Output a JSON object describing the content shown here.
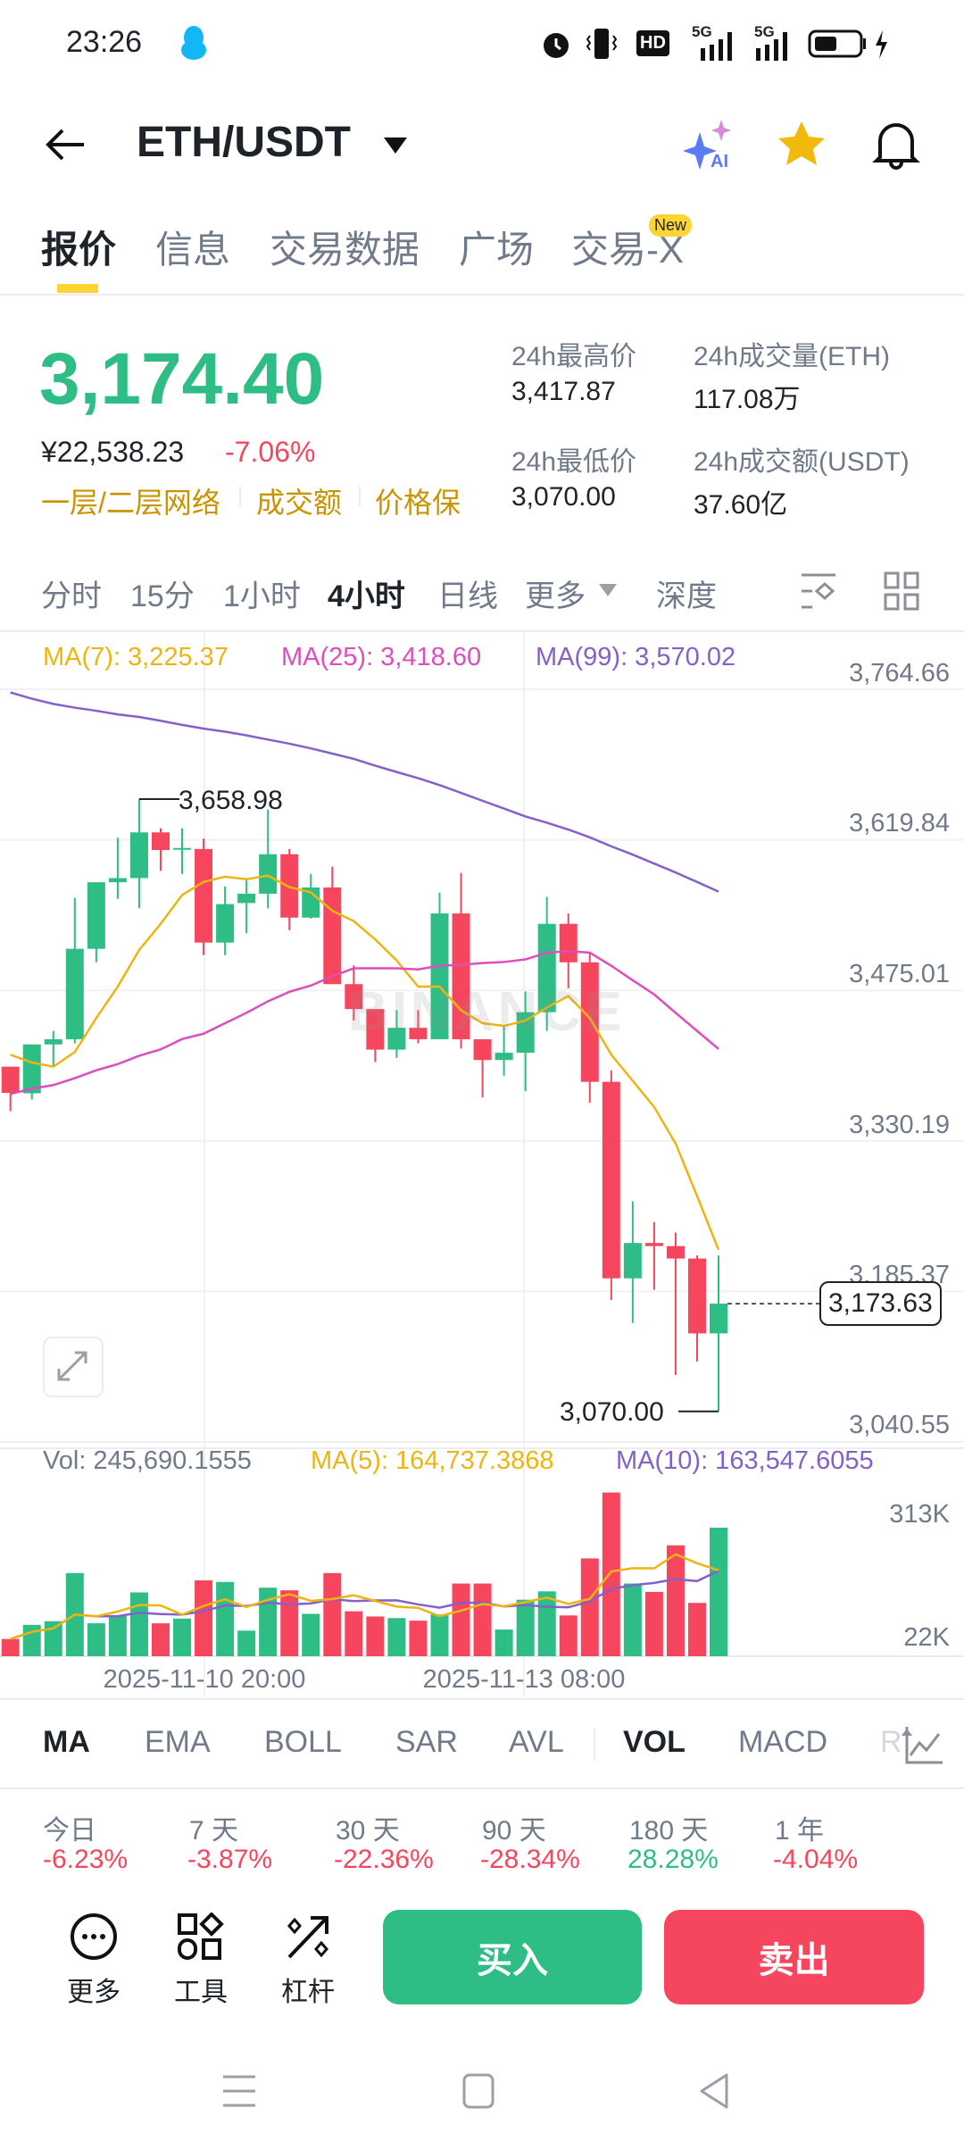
{
  "status_bar": {
    "time": "23:26",
    "network_1": "5G",
    "network_2": "5G",
    "hd_label": "HD"
  },
  "header": {
    "pair": "ETH/USDT",
    "ai_label": "AI"
  },
  "tabs": [
    {
      "label": "报价",
      "active": true
    },
    {
      "label": "信息"
    },
    {
      "label": "交易数据"
    },
    {
      "label": "广场"
    },
    {
      "label": "交易-X",
      "badge": "New"
    }
  ],
  "ticker": {
    "price": "3,174.40",
    "cny_price": "¥22,538.23",
    "change": "-7.06%",
    "tags": [
      "一层/二层网络",
      "成交额",
      "价格保"
    ],
    "high_label": "24h最高价",
    "high": "3,417.87",
    "low_label": "24h最低价",
    "low": "3,070.00",
    "vol_label": "24h成交量(ETH)",
    "vol": "117.08万",
    "turnover_label": "24h成交额(USDT)",
    "turnover": "37.60亿"
  },
  "timeframes": [
    {
      "label": "分时"
    },
    {
      "label": "15分"
    },
    {
      "label": "1小时"
    },
    {
      "label": "4小时",
      "active": true
    },
    {
      "label": "日线"
    },
    {
      "label": "更多"
    },
    {
      "label": "深度"
    }
  ],
  "colors": {
    "up": "#2EBD85",
    "down": "#F6465D",
    "ma7": "#EDB512",
    "ma25": "#DE4DBD",
    "ma99": "#8461C9",
    "accent": "#F0B90B"
  },
  "chart_data": {
    "type": "candlestick",
    "legend": {
      "ma7": "MA(7): 3,225.37",
      "ma25": "MA(25): 3,418.60",
      "ma99": "MA(99): 3,570.02"
    },
    "y_ticks": [
      "3,764.66",
      "3,619.84",
      "3,475.01",
      "3,330.19",
      "3,185.37",
      "3,040.55"
    ],
    "ylim": [
      3040.55,
      3764.66
    ],
    "x_ticks": [
      "2025-11-10 20:00",
      "2025-11-13 08:00"
    ],
    "high_marker": "3,658.98",
    "low_marker": "3,070.00",
    "last_price": "3,173.63",
    "watermark": "BINANCE",
    "candles": [
      [
        3401.6,
        3401.6,
        3358.7,
        3376.4
      ],
      [
        3376,
        3423,
        3370,
        3423
      ],
      [
        3423,
        3436,
        3401,
        3428
      ],
      [
        3428,
        3564,
        3424,
        3515
      ],
      [
        3515,
        3579,
        3502,
        3579
      ],
      [
        3579,
        3622,
        3563,
        3583
      ],
      [
        3583,
        3658.98,
        3554,
        3627
      ],
      [
        3627,
        3631,
        3590,
        3610
      ],
      [
        3611,
        3631,
        3587,
        3612
      ],
      [
        3611,
        3621,
        3509,
        3521
      ],
      [
        3521,
        3575,
        3509,
        3558
      ],
      [
        3559,
        3582,
        3530,
        3568
      ],
      [
        3568,
        3649,
        3554,
        3606
      ],
      [
        3606,
        3611,
        3533,
        3545
      ],
      [
        3545,
        3587,
        3544,
        3574
      ],
      [
        3574,
        3594,
        3481,
        3481
      ],
      [
        3481,
        3499,
        3446,
        3457
      ],
      [
        3457,
        3457,
        3406,
        3418
      ],
      [
        3418,
        3456,
        3410,
        3439
      ],
      [
        3439,
        3456,
        3424,
        3428
      ],
      [
        3428,
        3569,
        3428,
        3549
      ],
      [
        3549,
        3588,
        3419,
        3428
      ],
      [
        3428,
        3428,
        3372,
        3408
      ],
      [
        3408,
        3441,
        3393,
        3415
      ],
      [
        3415,
        3474,
        3378,
        3454
      ],
      [
        3454,
        3565,
        3436,
        3539
      ],
      [
        3539,
        3549,
        3477,
        3502
      ],
      [
        3502,
        3511,
        3367,
        3387
      ],
      [
        3387,
        3398,
        3177,
        3198
      ],
      [
        3198,
        3272,
        3155,
        3232
      ],
      [
        3232,
        3252,
        3187,
        3229
      ],
      [
        3229,
        3242,
        3105,
        3217
      ],
      [
        3217,
        3220,
        3118,
        3145
      ],
      [
        3145,
        3220,
        3070,
        3173.63
      ]
    ],
    "ma7": [
      3413.1,
      3405.6,
      3401.6,
      3415.7,
      3448.4,
      3478.6,
      3513.9,
      3539.0,
      3566.7,
      3579.3,
      3584.4,
      3581.9,
      3585.4,
      3574.3,
      3569.3,
      3551.6,
      3541.6,
      3524.0,
      3503.8,
      3478.6,
      3478.6,
      3456.0,
      3443.4,
      3440.8,
      3445.9,
      3458.5,
      3469.6,
      3448.4,
      3413.1,
      3388.0,
      3362.8,
      3327.6,
      3277.2,
      3225.37
    ],
    "ma25": [
      3375.4,
      3380.4,
      3383.9,
      3390.5,
      3398.1,
      3404.1,
      3412.1,
      3418.2,
      3428.2,
      3433.3,
      3443.4,
      3453.4,
      3464.5,
      3473.6,
      3479.6,
      3488.6,
      3496.2,
      3496.2,
      3496.2,
      3495.2,
      3498.7,
      3499.7,
      3501.3,
      3502.3,
      3504.8,
      3511.3,
      3512.8,
      3511.3,
      3498.7,
      3484.7,
      3471.1,
      3453.4,
      3436.0,
      3418.6
    ],
    "ma99": [
      3761.6,
      3755.6,
      3750.6,
      3747.0,
      3744.0,
      3740.5,
      3738.0,
      3734.4,
      3730.4,
      3726.9,
      3723.9,
      3720.3,
      3716.3,
      3712.3,
      3707.8,
      3702.8,
      3697.7,
      3691.2,
      3685.1,
      3679.1,
      3672.5,
      3665.0,
      3657.4,
      3649.9,
      3642.3,
      3636.3,
      3629.7,
      3622.2,
      3613.6,
      3605.6,
      3597.0,
      3588.4,
      3579.3,
      3570.02
    ]
  },
  "volume_data": {
    "type": "bar",
    "legend": {
      "vol": "Vol: 245,690.1555",
      "ma5": "MA(5): 164,737.3868",
      "ma10": "MA(10): 163,547.6055"
    },
    "y_ticks": [
      "313K",
      "22K"
    ],
    "unit": "K",
    "values": [
      33,
      60,
      67,
      159,
      63,
      78,
      122,
      63,
      72,
      145,
      142,
      49,
      131,
      126,
      81,
      159,
      86,
      76,
      73,
      68,
      80,
      139,
      139,
      51,
      108,
      124,
      78,
      187,
      313,
      139,
      123,
      212,
      102,
      245.69
    ]
  },
  "indicators": [
    {
      "label": "MA",
      "active": true
    },
    {
      "label": "EMA"
    },
    {
      "label": "BOLL"
    },
    {
      "label": "SAR"
    },
    {
      "label": "AVL"
    },
    {
      "label": "VOL",
      "active": true
    },
    {
      "label": "MACD"
    },
    {
      "label": "R"
    }
  ],
  "performance": [
    {
      "label": "今日",
      "value": "-6.23%"
    },
    {
      "label": "7 天",
      "value": "-3.87%"
    },
    {
      "label": "30 天",
      "value": "-22.36%"
    },
    {
      "label": "90 天",
      "value": "-28.34%"
    },
    {
      "label": "180 天",
      "value": "28.28%"
    },
    {
      "label": "1 年",
      "value": "-4.04%"
    }
  ],
  "bottom_bar": {
    "more": "更多",
    "tools": "工具",
    "leverage": "杠杆",
    "buy": "买入",
    "sell": "卖出"
  }
}
